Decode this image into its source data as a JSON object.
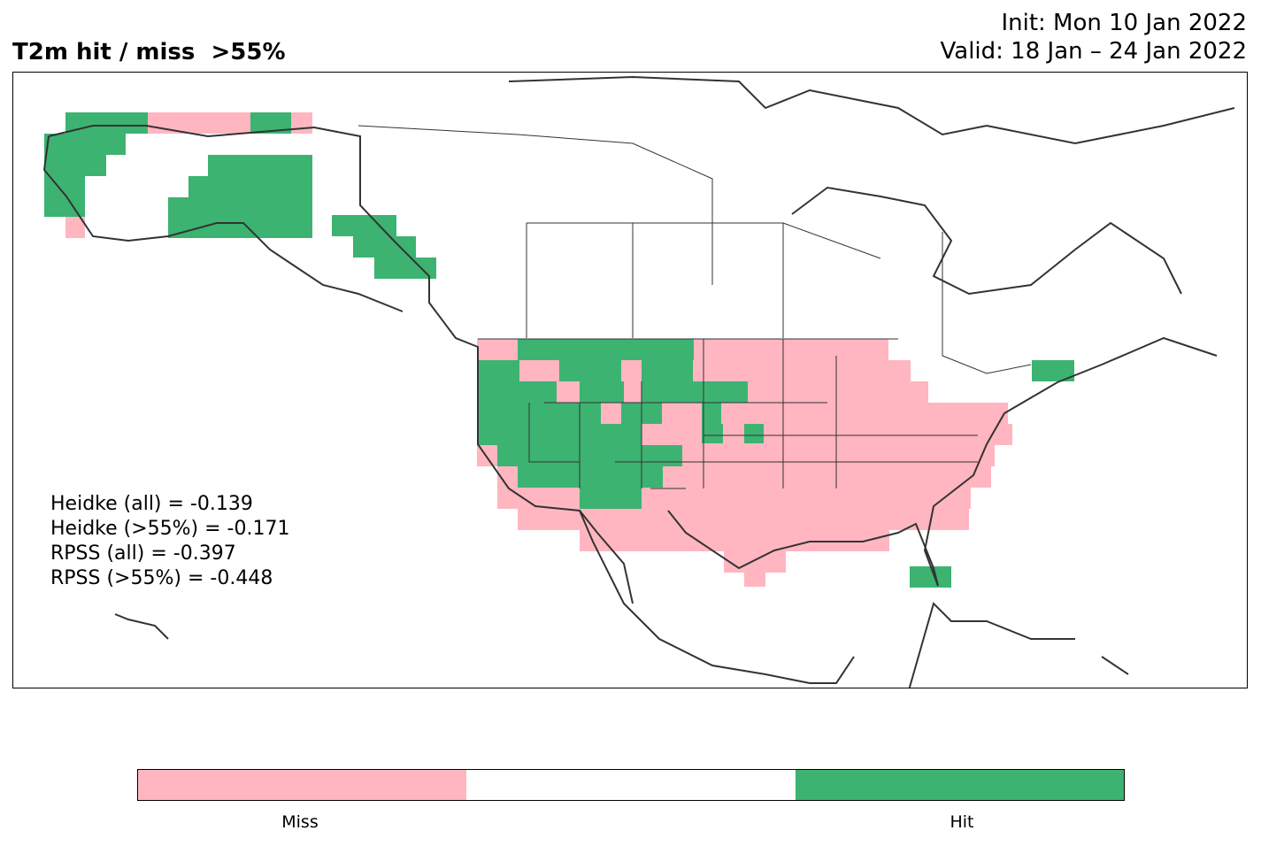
{
  "title": {
    "left": "T2m hit / miss  >55%",
    "init": "Init: Mon 10 Jan 2022",
    "valid": "Valid: 18 Jan – 24 Jan 2022"
  },
  "scores": {
    "heidke_all": "Heidke (all) = -0.139",
    "heidke_55": "Heidke (>55%) = -0.171",
    "rpss_all": "RPSS (all) = -0.397",
    "rpss_55": "RPSS (>55%) = -0.448"
  },
  "colorbar": {
    "labels": {
      "miss": "Miss",
      "hit": "Hit"
    },
    "colors": {
      "miss": "#ffb6c1",
      "neutral": "#ffffff",
      "hit": "#3cb371"
    }
  },
  "map": {
    "coastline_color": "#333333",
    "legend_values": {
      "miss": 0,
      "neutral": 1,
      "hit": 2
    }
  }
}
